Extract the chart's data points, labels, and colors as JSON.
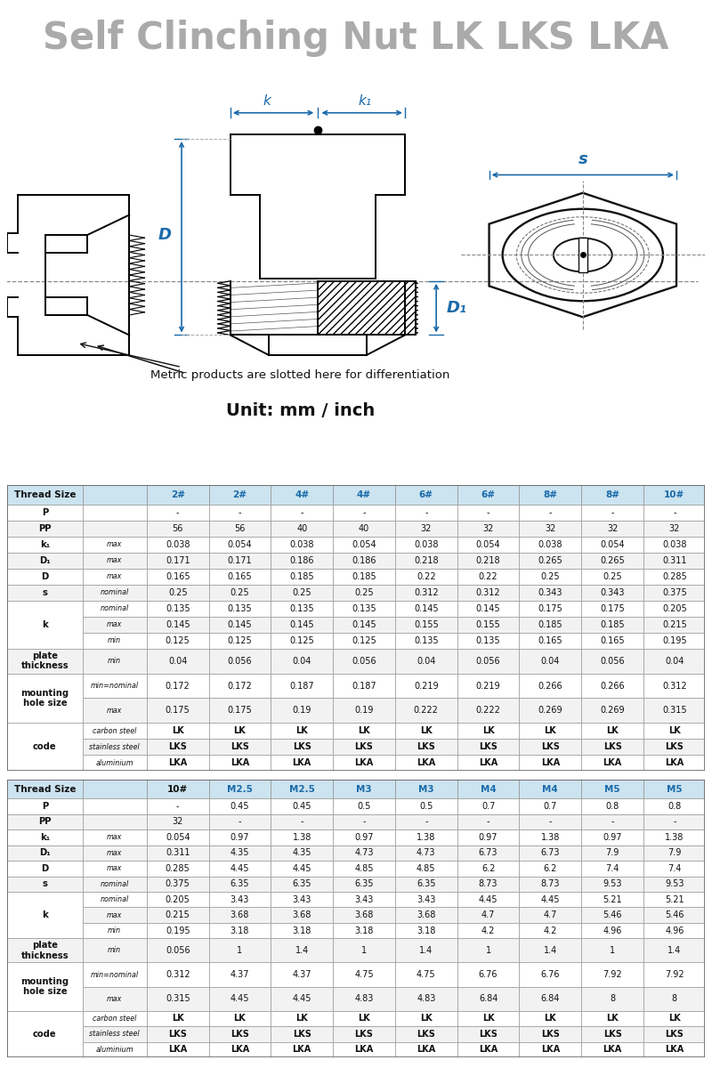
{
  "title": "Self Clinching Nut LK LKS LKA",
  "subtitle": "Unit: mm / inch",
  "diagram_note": "Metric products are slotted here for differentiation",
  "table1_header": [
    "Thread Size",
    "",
    "2#",
    "2#",
    "4#",
    "4#",
    "6#",
    "6#",
    "8#",
    "8#",
    "10#"
  ],
  "table2_header": [
    "Thread Size",
    "",
    "10#",
    "M2.5",
    "M2.5",
    "M3",
    "M3",
    "M4",
    "M4",
    "M5",
    "M5"
  ],
  "col_header_colors1": [
    "black",
    "black",
    "blue",
    "blue",
    "blue",
    "blue",
    "blue",
    "blue",
    "blue",
    "blue",
    "blue"
  ],
  "col_header_colors2": [
    "black",
    "black",
    "black",
    "blue",
    "blue",
    "blue",
    "blue",
    "blue",
    "blue",
    "blue",
    "blue"
  ],
  "rows1": [
    [
      "P",
      "",
      "-",
      "-",
      "-",
      "-",
      "-",
      "-",
      "-",
      "-",
      "-"
    ],
    [
      "PP",
      "",
      "56",
      "56",
      "40",
      "40",
      "32",
      "32",
      "32",
      "32",
      "32"
    ],
    [
      "k₁",
      "max",
      "0.038",
      "0.054",
      "0.038",
      "0.054",
      "0.038",
      "0.054",
      "0.038",
      "0.054",
      "0.038"
    ],
    [
      "D₁",
      "max",
      "0.171",
      "0.171",
      "0.186",
      "0.186",
      "0.218",
      "0.218",
      "0.265",
      "0.265",
      "0.311"
    ],
    [
      "D",
      "max",
      "0.165",
      "0.165",
      "0.185",
      "0.185",
      "0.22",
      "0.22",
      "0.25",
      "0.25",
      "0.285"
    ],
    [
      "s",
      "nominal",
      "0.25",
      "0.25",
      "0.25",
      "0.25",
      "0.312",
      "0.312",
      "0.343",
      "0.343",
      "0.375"
    ],
    [
      "k",
      "nominal",
      "0.135",
      "0.135",
      "0.135",
      "0.135",
      "0.145",
      "0.145",
      "0.175",
      "0.175",
      "0.205"
    ],
    [
      "k",
      "max",
      "0.145",
      "0.145",
      "0.145",
      "0.145",
      "0.155",
      "0.155",
      "0.185",
      "0.185",
      "0.215"
    ],
    [
      "k",
      "min",
      "0.125",
      "0.125",
      "0.125",
      "0.125",
      "0.135",
      "0.135",
      "0.165",
      "0.165",
      "0.195"
    ],
    [
      "plate\nthickness",
      "min",
      "0.04",
      "0.056",
      "0.04",
      "0.056",
      "0.04",
      "0.056",
      "0.04",
      "0.056",
      "0.04"
    ],
    [
      "mounting\nhole size",
      "min=nominal",
      "0.172",
      "0.172",
      "0.187",
      "0.187",
      "0.219",
      "0.219",
      "0.266",
      "0.266",
      "0.312"
    ],
    [
      "mounting\nhole size",
      "max",
      "0.175",
      "0.175",
      "0.19",
      "0.19",
      "0.222",
      "0.222",
      "0.269",
      "0.269",
      "0.315"
    ],
    [
      "code",
      "carbon steel",
      "LK",
      "LK",
      "LK",
      "LK",
      "LK",
      "LK",
      "LK",
      "LK",
      "LK"
    ],
    [
      "code",
      "stainless steel",
      "LKS",
      "LKS",
      "LKS",
      "LKS",
      "LKS",
      "LKS",
      "LKS",
      "LKS",
      "LKS"
    ],
    [
      "code",
      "aluminium",
      "LKA",
      "LKA",
      "LKA",
      "LKA",
      "LKA",
      "LKA",
      "LKA",
      "LKA",
      "LKA"
    ]
  ],
  "rows2": [
    [
      "P",
      "",
      "-",
      "0.45",
      "0.45",
      "0.5",
      "0.5",
      "0.7",
      "0.7",
      "0.8",
      "0.8"
    ],
    [
      "PP",
      "",
      "32",
      "-",
      "-",
      "-",
      "-",
      "-",
      "-",
      "-",
      "-"
    ],
    [
      "k₁",
      "max",
      "0.054",
      "0.97",
      "1.38",
      "0.97",
      "1.38",
      "0.97",
      "1.38",
      "0.97",
      "1.38"
    ],
    [
      "D₁",
      "max",
      "0.311",
      "4.35",
      "4.35",
      "4.73",
      "4.73",
      "6.73",
      "6.73",
      "7.9",
      "7.9"
    ],
    [
      "D",
      "max",
      "0.285",
      "4.45",
      "4.45",
      "4.85",
      "4.85",
      "6.2",
      "6.2",
      "7.4",
      "7.4"
    ],
    [
      "s",
      "nominal",
      "0.375",
      "6.35",
      "6.35",
      "6.35",
      "6.35",
      "8.73",
      "8.73",
      "9.53",
      "9.53"
    ],
    [
      "k",
      "nominal",
      "0.205",
      "3.43",
      "3.43",
      "3.43",
      "3.43",
      "4.45",
      "4.45",
      "5.21",
      "5.21"
    ],
    [
      "k",
      "max",
      "0.215",
      "3.68",
      "3.68",
      "3.68",
      "3.68",
      "4.7",
      "4.7",
      "5.46",
      "5.46"
    ],
    [
      "k",
      "min",
      "0.195",
      "3.18",
      "3.18",
      "3.18",
      "3.18",
      "4.2",
      "4.2",
      "4.96",
      "4.96"
    ],
    [
      "plate\nthickness",
      "min",
      "0.056",
      "1",
      "1.4",
      "1",
      "1.4",
      "1",
      "1.4",
      "1",
      "1.4"
    ],
    [
      "mounting\nhole size",
      "min=nominal",
      "0.312",
      "4.37",
      "4.37",
      "4.75",
      "4.75",
      "6.76",
      "6.76",
      "7.92",
      "7.92"
    ],
    [
      "mounting\nhole size",
      "max",
      "0.315",
      "4.45",
      "4.45",
      "4.83",
      "4.83",
      "6.84",
      "6.84",
      "8",
      "8"
    ],
    [
      "code",
      "carbon steel",
      "LK",
      "LK",
      "LK",
      "LK",
      "LK",
      "LK",
      "LK",
      "LK",
      "LK"
    ],
    [
      "code",
      "stainless steel",
      "LKS",
      "LKS",
      "LKS",
      "LKS",
      "LKS",
      "LKS",
      "LKS",
      "LKS",
      "LKS"
    ],
    [
      "code",
      "aluminium",
      "LKA",
      "LKA",
      "LKA",
      "LKA",
      "LKA",
      "LKA",
      "LKA",
      "LKA",
      "LKA"
    ]
  ],
  "header_bg": "#cce4f0",
  "border_color": "#999999",
  "text_color_black": "#111111",
  "text_color_blue": "#1a6aaa",
  "title_color": "#aaaaaa",
  "lw": 1.4
}
